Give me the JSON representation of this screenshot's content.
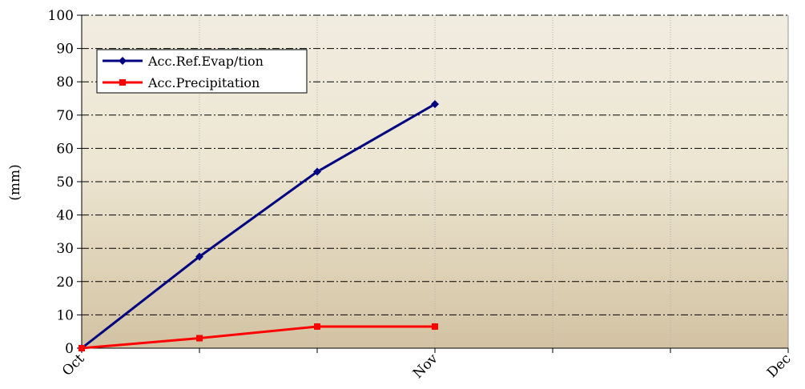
{
  "chart_data": {
    "type": "line",
    "title": "",
    "xlabel": "",
    "ylabel": "(mm)",
    "ylim": [
      0,
      100
    ],
    "yticks": [
      0,
      10,
      20,
      30,
      40,
      50,
      60,
      70,
      80,
      90,
      100
    ],
    "xlim": [
      0,
      6
    ],
    "xtick_labels": [
      {
        "label": "Oct",
        "x": 0
      },
      {
        "label": "Nov",
        "x": 3
      },
      {
        "label": "Dec",
        "x": 6
      }
    ],
    "grid": {
      "horizontal": "dash-dot",
      "vertical": "dotted"
    },
    "legend_position": "top-left",
    "plot_background": [
      "#f0ece0",
      "#d2c2a2"
    ],
    "series": [
      {
        "name": "Acc.Ref.Evap/tion",
        "color": "#000080",
        "marker": "diamond",
        "x": [
          0,
          1,
          2,
          3
        ],
        "values": [
          0,
          27.5,
          53,
          73.3
        ]
      },
      {
        "name": "Acc.Precipitation",
        "color": "#ff0000",
        "marker": "square",
        "x": [
          0,
          1,
          2,
          3
        ],
        "values": [
          0,
          3,
          6.5,
          6.5
        ]
      }
    ]
  }
}
